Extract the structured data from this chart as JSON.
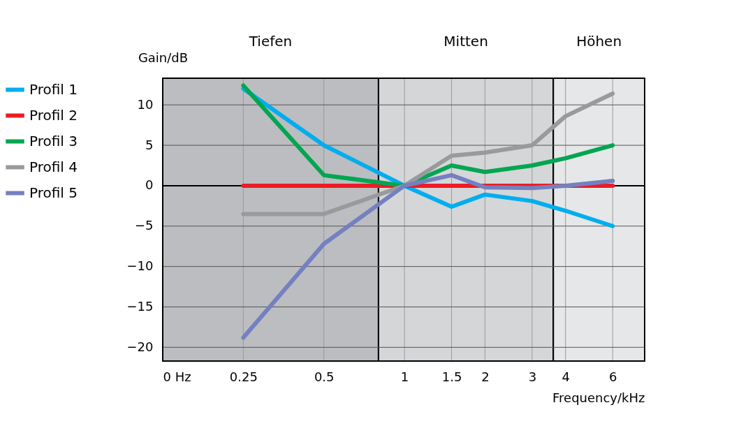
{
  "chart_data": {
    "type": "line",
    "x": [
      0.25,
      0.5,
      1,
      1.5,
      2,
      3,
      4,
      6
    ],
    "series": [
      {
        "name": "Profil 1",
        "color": "#00aeef",
        "values": [
          12,
          5,
          0,
          -2.6,
          -1.1,
          -1.9,
          -3.1,
          -5
        ]
      },
      {
        "name": "Profil 2",
        "color": "#ed1c24",
        "values": [
          0,
          0,
          0,
          0,
          0,
          0,
          0,
          0
        ]
      },
      {
        "name": "Profil 3",
        "color": "#00a651",
        "values": [
          12.4,
          1.3,
          0,
          2.5,
          1.7,
          2.5,
          3.4,
          5
        ]
      },
      {
        "name": "Profil 4",
        "color": "#999a9c",
        "values": [
          -3.5,
          -3.5,
          0,
          3.7,
          4.1,
          5,
          8.6,
          11.4
        ]
      },
      {
        "name": "Profil 5",
        "color": "#7580c0",
        "values": [
          -18.8,
          -7.2,
          0,
          1.3,
          -0.2,
          -0.3,
          0,
          0.6
        ]
      }
    ],
    "xlabel": "Frequency/kHz",
    "ylabel": "Gain/dB",
    "log": "x",
    "xlim": [
      0.125,
      7.9
    ],
    "xticks": [
      {
        "value": 0.125,
        "label": "0 Hz"
      },
      0.25,
      0.5,
      1,
      1.5,
      2,
      3,
      4,
      6
    ],
    "ylim": [
      -21.7,
      13.3
    ],
    "yticks": [
      -20,
      -15,
      -10,
      -5,
      0,
      5,
      10
    ],
    "bands": [
      {
        "axis": "x",
        "from": 0.125,
        "to": 0.8,
        "label": "Tiefen",
        "color": "#bcbdc0"
      },
      {
        "axis": "x",
        "from": 0.8,
        "to": 3.6,
        "label": "Mitten",
        "color": "#d5d6d8"
      },
      {
        "axis": "x",
        "from": 3.6,
        "to": 7.9,
        "label": "Höhen",
        "color": "#e6e7e8"
      }
    ],
    "ref_lines": [
      {
        "axis": "y",
        "value": 0,
        "color": "#000000"
      }
    ],
    "grid": true,
    "legend": "left",
    "marker": "none",
    "line_style": "solid"
  }
}
